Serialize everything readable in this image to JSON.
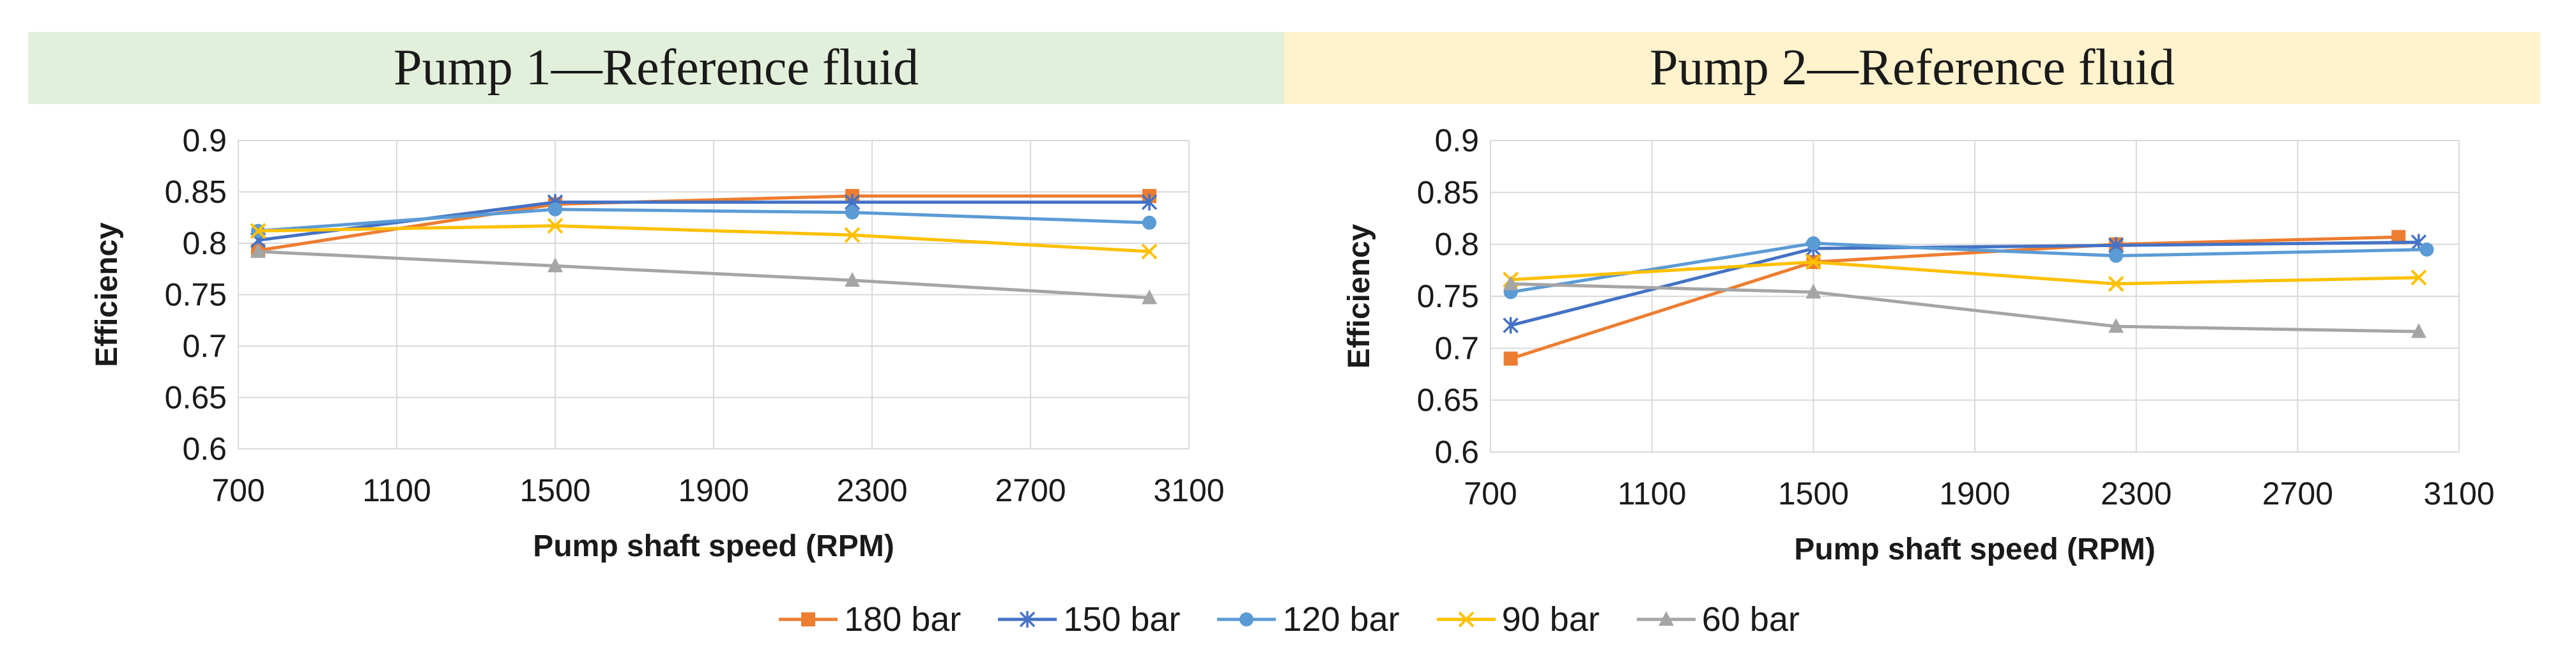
{
  "colors": {
    "180 bar": "#ed7d31",
    "150 bar": "#4472c4",
    "120 bar": "#5b9bd5",
    "90 bar": "#ffc000",
    "60 bar": "#a5a5a5",
    "grid": "#d9d9d9",
    "pump1_banner": "#e2efda",
    "pump2_banner": "#fff2cc"
  },
  "legend": [
    {
      "label": "180 bar",
      "marker": "square"
    },
    {
      "label": "150 bar",
      "marker": "star"
    },
    {
      "label": "120 bar",
      "marker": "circle"
    },
    {
      "label": "90 bar",
      "marker": "x"
    },
    {
      "label": "60 bar",
      "marker": "triangle"
    }
  ],
  "chart_data": [
    {
      "type": "line",
      "title": "Pump 1—Reference fluid",
      "xlabel": "Pump shaft speed (RPM)",
      "ylabel": "Efficiency",
      "xlim": [
        700,
        3100
      ],
      "ylim": [
        0.6,
        0.9
      ],
      "xticks": [
        "700",
        "1100",
        "1500",
        "1900",
        "2300",
        "2700",
        "3100"
      ],
      "yticks": [
        "0.6",
        "0.65",
        "0.7",
        "0.75",
        "0.8",
        "0.85",
        "0.9"
      ],
      "grid": true,
      "series": [
        {
          "name": "180 bar",
          "x": [
            750,
            1500,
            2250,
            3000
          ],
          "values": [
            0.793,
            0.838,
            0.846,
            0.846
          ]
        },
        {
          "name": "150 bar",
          "x": [
            750,
            1500,
            2250,
            3000
          ],
          "values": [
            0.803,
            0.84,
            0.84,
            0.84
          ]
        },
        {
          "name": "120 bar",
          "x": [
            750,
            1500,
            2250,
            3000
          ],
          "values": [
            0.812,
            0.833,
            0.83,
            0.82
          ]
        },
        {
          "name": "90 bar",
          "x": [
            750,
            1500,
            2250,
            3000
          ],
          "values": [
            0.812,
            0.817,
            0.808,
            0.792
          ]
        },
        {
          "name": "60 bar",
          "x": [
            750,
            1500,
            2250,
            3000
          ],
          "values": [
            0.792,
            0.778,
            0.764,
            0.747
          ]
        }
      ]
    },
    {
      "type": "line",
      "title": "Pump 2—Reference fluid",
      "xlabel": "Pump shaft speed (RPM)",
      "ylabel": "Efficiency",
      "xlim": [
        700,
        3100
      ],
      "ylim": [
        0.6,
        0.9
      ],
      "xticks": [
        "700",
        "1100",
        "1500",
        "1900",
        "2300",
        "2700",
        "3100"
      ],
      "yticks": [
        "0.6",
        "0.65",
        "0.7",
        "0.75",
        "0.8",
        "0.85",
        "0.9"
      ],
      "grid": true,
      "series": [
        {
          "name": "180 bar",
          "x": [
            750,
            1500,
            2250,
            2950
          ],
          "values": [
            0.69,
            0.783,
            0.8,
            0.807
          ]
        },
        {
          "name": "150 bar",
          "x": [
            750,
            1500,
            2250,
            3000
          ],
          "values": [
            0.722,
            0.796,
            0.799,
            0.802
          ]
        },
        {
          "name": "120 bar",
          "x": [
            750,
            1500,
            2250,
            3020
          ],
          "values": [
            0.754,
            0.801,
            0.789,
            0.795
          ]
        },
        {
          "name": "90 bar",
          "x": [
            750,
            1500,
            2250,
            3000
          ],
          "values": [
            0.766,
            0.783,
            0.762,
            0.768
          ]
        },
        {
          "name": "60 bar",
          "x": [
            750,
            1500,
            2250,
            3000
          ],
          "values": [
            0.762,
            0.754,
            0.721,
            0.716
          ]
        }
      ]
    }
  ]
}
